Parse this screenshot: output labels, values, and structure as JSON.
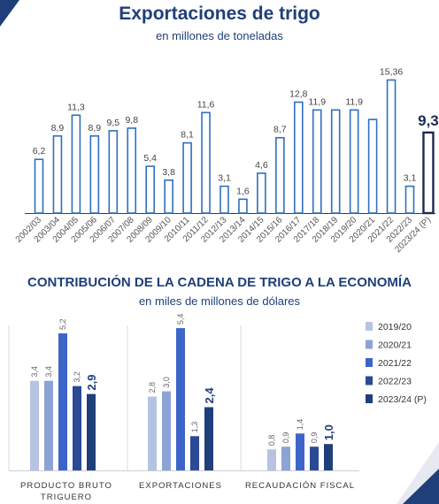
{
  "chart_data": [
    {
      "type": "bar",
      "title": "Exportaciones de trigo",
      "subtitle": "en millones de toneladas",
      "categories": [
        "2002/03",
        "2003/04",
        "2004/05",
        "2005/06",
        "2006/07",
        "2007/08",
        "2008/09",
        "2009/10",
        "2010/11",
        "2011/12",
        "2012/13",
        "2013/14",
        "2014/15",
        "2015/16",
        "2016/17",
        "2017/18",
        "2018/19",
        "2019/20",
        "2020/21",
        "2021/22",
        "2022/23",
        "2023/24 (P)"
      ],
      "values": [
        6.2,
        8.9,
        11.3,
        8.9,
        9.5,
        9.8,
        5.4,
        3.8,
        8.1,
        11.6,
        3.1,
        1.6,
        4.6,
        8.7,
        12.8,
        11.9,
        null,
        11.9,
        null,
        15.36,
        3.1,
        9.3
      ],
      "estimated_values": {
        "2018/19": 11.9,
        "2020/21": 10.8
      },
      "value_labels": [
        "6,2",
        "8,9",
        "11,3",
        "8,9",
        "9,5",
        "9,8",
        "5,4",
        "3,8",
        "8,1",
        "11,6",
        "3,1",
        "1,6",
        "4,6",
        "8,7",
        "12,8",
        "11,9",
        "",
        "11,9",
        "",
        "15,36",
        "3,1",
        "9,3"
      ],
      "highlight_last": true,
      "colors": {
        "bar_stroke": "#2f6fc0",
        "highlight_stroke": "#1b2b52",
        "axis": "#1f3f7a"
      }
    },
    {
      "type": "bar",
      "title": "CONTRIBUCIÓN DE LA CADENA DE TRIGO A LA ECONOMÍA",
      "subtitle": "en miles de millones de dólares",
      "categories": [
        "PRODUCTO BRUTO TRIGUERO",
        "EXPORTACIONES",
        "RECAUDACIÓN FISCAL"
      ],
      "series": [
        {
          "name": "2019/20",
          "color": "#b6c3e3",
          "values": [
            3.4,
            2.8,
            0.8
          ],
          "labels": [
            "3,4",
            "2,8",
            "0,8"
          ]
        },
        {
          "name": "2020/21",
          "color": "#8da3d6",
          "values": [
            3.4,
            3.0,
            0.9
          ],
          "labels": [
            "3,4",
            "3,0",
            "0,9"
          ]
        },
        {
          "name": "2021/22",
          "color": "#3d64c8",
          "values": [
            5.2,
            5.4,
            1.4
          ],
          "labels": [
            "5,2",
            "5,4",
            "1,4"
          ]
        },
        {
          "name": "2022/23",
          "color": "#2b4a95",
          "values": [
            3.2,
            1.3,
            0.9
          ],
          "labels": [
            "3,2",
            "1,3",
            "0,9"
          ]
        },
        {
          "name": "2023/24 (P)",
          "color": "#1f3f7a",
          "values": [
            2.9,
            2.4,
            1.0
          ],
          "labels": [
            "2,9",
            "2,4",
            "1,0"
          ],
          "highlight": true
        }
      ],
      "group_label_lines": [
        [
          "PRODUCTO BRUTO",
          "TRIGUERO"
        ],
        [
          "EXPORTACIONES"
        ],
        [
          "RECAUDACIÓN FISCAL"
        ]
      ],
      "legend_position": "right"
    }
  ]
}
